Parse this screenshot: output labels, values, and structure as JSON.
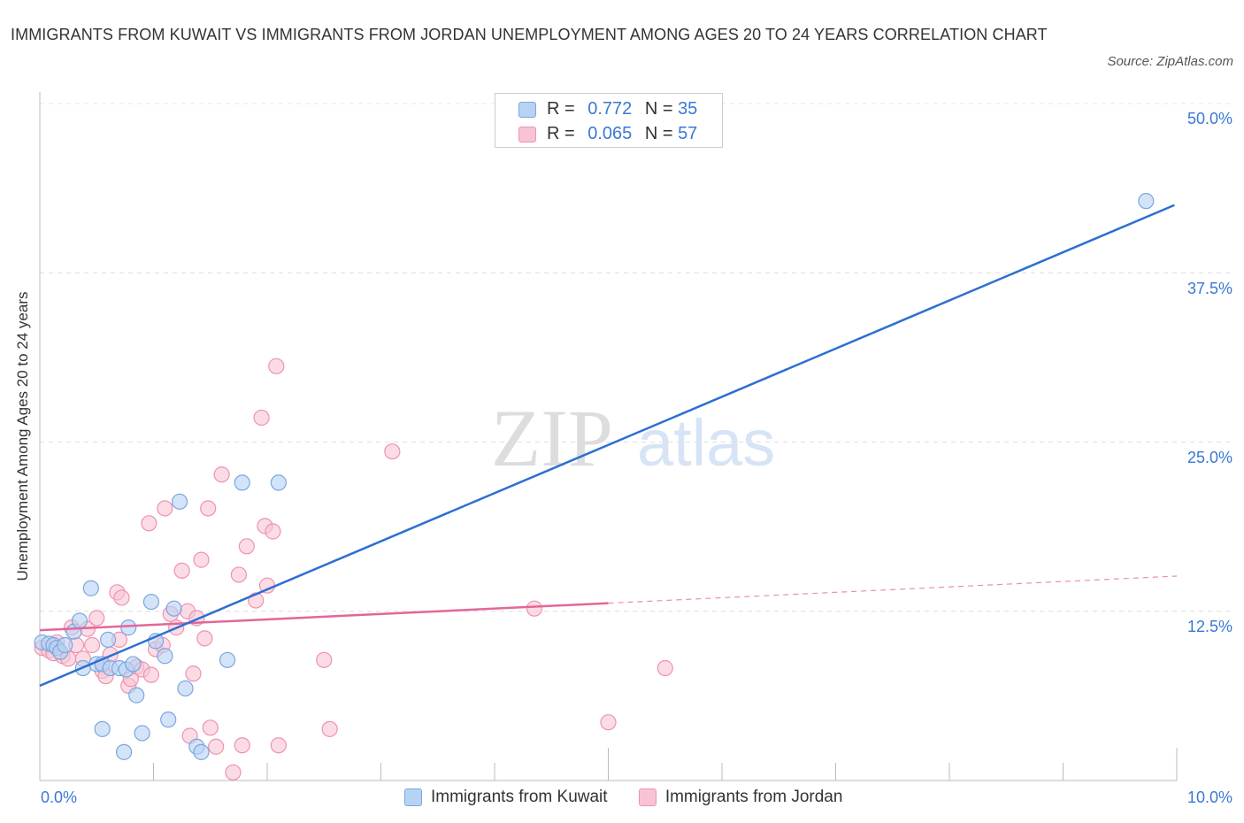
{
  "title": "IMMIGRANTS FROM KUWAIT VS IMMIGRANTS FROM JORDAN UNEMPLOYMENT AMONG AGES 20 TO 24 YEARS CORRELATION CHART",
  "source": "Source: ZipAtlas.com",
  "watermark": {
    "zip": "ZIP",
    "atlas": "atlas"
  },
  "legend": {
    "r_label": "R =",
    "n_label": "N =",
    "kuwait": {
      "r": "0.772",
      "n": "35"
    },
    "jordan": {
      "r": "0.065",
      "n": "57"
    }
  },
  "colors": {
    "kuwait_fill": "#b8d2f3",
    "kuwait_stroke": "#7aa6e0",
    "kuwait_line": "#2d6fd0",
    "jordan_fill": "#f8c4d4",
    "jordan_stroke": "#ee92b0",
    "jordan_line": "#e2679a",
    "tick_label": "#3a78d4"
  },
  "chart_data": {
    "type": "scatter",
    "title": "IMMIGRANTS FROM KUWAIT VS IMMIGRANTS FROM JORDAN UNEMPLOYMENT AMONG AGES 20 TO 24 YEARS CORRELATION CHART",
    "xlabel": "",
    "ylabel": "Unemployment Among Ages 20 to 24 years",
    "xlim": [
      0,
      10
    ],
    "ylim": [
      0,
      50
    ],
    "x_tick_labels": [
      "0.0%",
      "10.0%"
    ],
    "y_ticks": [
      12.5,
      25.0,
      37.5,
      50.0
    ],
    "y_tick_labels": [
      "12.5%",
      "25.0%",
      "37.5%",
      "50.0%"
    ],
    "grid": true,
    "legend_placement": "top-center",
    "series": [
      {
        "name": "Immigrants from Kuwait",
        "r": 0.772,
        "n": 35,
        "trend": {
          "x": [
            0,
            9.98
          ],
          "y": [
            7.0,
            42.5
          ]
        },
        "points": [
          [
            0.02,
            10.2
          ],
          [
            0.08,
            10.1
          ],
          [
            0.12,
            10.0
          ],
          [
            0.15,
            9.8
          ],
          [
            0.18,
            9.5
          ],
          [
            0.22,
            10.0
          ],
          [
            0.3,
            11.0
          ],
          [
            0.35,
            11.8
          ],
          [
            0.38,
            8.3
          ],
          [
            0.45,
            14.2
          ],
          [
            0.5,
            8.6
          ],
          [
            0.55,
            8.6
          ],
          [
            0.55,
            3.8
          ],
          [
            0.6,
            10.4
          ],
          [
            0.62,
            8.3
          ],
          [
            0.7,
            8.3
          ],
          [
            0.74,
            2.1
          ],
          [
            0.76,
            8.2
          ],
          [
            0.78,
            11.3
          ],
          [
            0.82,
            8.6
          ],
          [
            0.85,
            6.3
          ],
          [
            0.9,
            3.5
          ],
          [
            0.98,
            13.2
          ],
          [
            1.02,
            10.3
          ],
          [
            1.1,
            9.2
          ],
          [
            1.13,
            4.5
          ],
          [
            1.18,
            12.7
          ],
          [
            1.23,
            20.6
          ],
          [
            1.28,
            6.8
          ],
          [
            1.38,
            2.5
          ],
          [
            1.42,
            2.1
          ],
          [
            1.65,
            8.9
          ],
          [
            1.78,
            22.0
          ],
          [
            2.1,
            22.0
          ],
          [
            9.73,
            42.8
          ]
        ]
      },
      {
        "name": "Immigrants from Jordan",
        "r": 0.065,
        "n": 57,
        "trend": {
          "x": [
            0,
            5.0
          ],
          "y": [
            11.1,
            13.1
          ],
          "dashed_x": [
            5.0,
            10.0
          ],
          "dashed_y": [
            13.1,
            15.1
          ]
        },
        "points": [
          [
            0.02,
            9.8
          ],
          [
            0.08,
            9.6
          ],
          [
            0.12,
            9.4
          ],
          [
            0.15,
            10.2
          ],
          [
            0.2,
            9.2
          ],
          [
            0.25,
            9.0
          ],
          [
            0.28,
            11.3
          ],
          [
            0.32,
            10.0
          ],
          [
            0.38,
            9.0
          ],
          [
            0.42,
            11.2
          ],
          [
            0.46,
            10.0
          ],
          [
            0.5,
            12.0
          ],
          [
            0.55,
            8.1
          ],
          [
            0.58,
            7.7
          ],
          [
            0.62,
            9.3
          ],
          [
            0.68,
            13.9
          ],
          [
            0.7,
            10.4
          ],
          [
            0.72,
            13.5
          ],
          [
            0.78,
            7.0
          ],
          [
            0.8,
            7.5
          ],
          [
            0.85,
            8.4
          ],
          [
            0.9,
            8.2
          ],
          [
            0.96,
            19.0
          ],
          [
            0.98,
            7.8
          ],
          [
            1.02,
            9.7
          ],
          [
            1.08,
            10.0
          ],
          [
            1.1,
            20.1
          ],
          [
            1.15,
            12.3
          ],
          [
            1.2,
            11.3
          ],
          [
            1.25,
            15.5
          ],
          [
            1.3,
            12.5
          ],
          [
            1.32,
            3.3
          ],
          [
            1.35,
            7.9
          ],
          [
            1.38,
            12.0
          ],
          [
            1.42,
            16.3
          ],
          [
            1.45,
            10.5
          ],
          [
            1.48,
            20.1
          ],
          [
            1.5,
            3.9
          ],
          [
            1.55,
            2.5
          ],
          [
            1.6,
            22.6
          ],
          [
            1.7,
            0.6
          ],
          [
            1.75,
            15.2
          ],
          [
            1.78,
            2.6
          ],
          [
            1.82,
            17.3
          ],
          [
            1.9,
            13.3
          ],
          [
            1.95,
            26.8
          ],
          [
            1.98,
            18.8
          ],
          [
            2.0,
            14.4
          ],
          [
            2.05,
            18.4
          ],
          [
            2.08,
            30.6
          ],
          [
            2.1,
            2.6
          ],
          [
            2.5,
            8.9
          ],
          [
            2.55,
            3.8
          ],
          [
            3.1,
            24.3
          ],
          [
            4.35,
            12.7
          ],
          [
            5.0,
            4.3
          ],
          [
            5.5,
            8.3
          ]
        ]
      }
    ]
  }
}
